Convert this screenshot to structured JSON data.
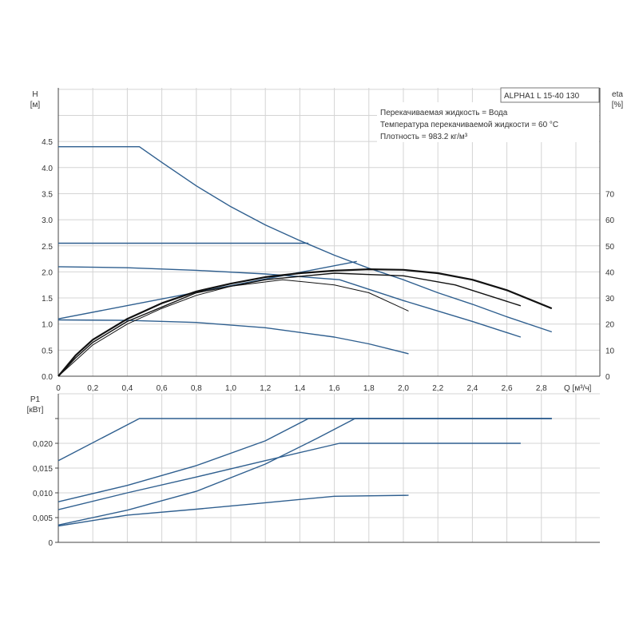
{
  "info": {
    "model": "ALPHA1 L 15-40  130",
    "lines": [
      "Перекачиваемая жидкость = Вода",
      "Температура перекачиваемой жидкости = 60 °C",
      "Плотность = 983.2 кг/м³"
    ]
  },
  "colors": {
    "pump_curve": "#2f5f8f",
    "eta_curve": "#111111",
    "grid": "#d4d4d4"
  },
  "chart_data": [
    {
      "type": "line",
      "title": "",
      "xlabel": "Q [м³/ч]",
      "ylabel": "H [м]",
      "ylabel_name": "H",
      "ylabel_unit": "[м]",
      "y2label_name": "eta",
      "y2label_unit": "[%]",
      "xlim": [
        0,
        3.14
      ],
      "ylim": [
        0,
        5.5
      ],
      "y2lim": [
        0,
        110
      ],
      "x_ticks": [
        "0",
        "0,2",
        "0,4",
        "0,6",
        "0,8",
        "1,0",
        "1,2",
        "1,4",
        "1,6",
        "1,8",
        "2,0",
        "2,2",
        "2,4",
        "2,6",
        "2,8"
      ],
      "y_ticks": [
        "0.0",
        "0.5",
        "1.0",
        "1.5",
        "2.0",
        "2.5",
        "3.0",
        "3.5",
        "4.0",
        "4.5"
      ],
      "y2_ticks": [
        "0",
        "10",
        "20",
        "30",
        "40",
        "50",
        "60",
        "70"
      ],
      "grid": true,
      "series": [
        {
          "name": "H max",
          "axis": "left",
          "x": [
            0,
            0.47,
            0.6,
            0.8,
            1.0,
            1.2,
            1.4,
            1.6,
            1.8,
            2.0,
            2.2,
            2.4,
            2.6,
            2.86
          ],
          "y": [
            4.4,
            4.4,
            4.1,
            3.65,
            3.25,
            2.9,
            2.6,
            2.32,
            2.07,
            1.85,
            1.6,
            1.38,
            1.14,
            0.85
          ]
        },
        {
          "name": "H constant",
          "axis": "left",
          "x": [
            0,
            1.45
          ],
          "y": [
            2.55,
            2.55
          ]
        },
        {
          "name": "H proportional high",
          "axis": "left",
          "x": [
            0,
            0.4,
            0.8,
            1.2,
            1.63,
            2.0,
            2.4,
            2.68
          ],
          "y": [
            2.1,
            2.08,
            2.03,
            1.96,
            1.85,
            1.45,
            1.05,
            0.75
          ]
        },
        {
          "name": "H rising",
          "axis": "left",
          "x": [
            0,
            1.73
          ],
          "y": [
            1.1,
            2.2
          ]
        },
        {
          "name": "H min",
          "axis": "left",
          "x": [
            0,
            0.4,
            0.8,
            1.2,
            1.6,
            1.8,
            2.03
          ],
          "y": [
            1.08,
            1.07,
            1.03,
            0.93,
            0.75,
            0.62,
            0.43
          ]
        },
        {
          "name": "eta max",
          "axis": "right",
          "x": [
            0,
            0.1,
            0.2,
            0.4,
            0.6,
            0.8,
            1.0,
            1.2,
            1.4,
            1.6,
            1.8,
            2.0,
            2.2,
            2.4,
            2.6,
            2.86
          ],
          "y": [
            0,
            8,
            14,
            22,
            28,
            32.5,
            35.5,
            38,
            39.5,
            40.5,
            41,
            40.8,
            39.5,
            37,
            33,
            26
          ]
        },
        {
          "name": "eta mid",
          "axis": "right",
          "x": [
            0,
            0.1,
            0.2,
            0.4,
            0.8,
            1.2,
            1.6,
            2.0,
            2.3,
            2.68
          ],
          "y": [
            0,
            7,
            13,
            21,
            32,
            37,
            39.5,
            38.5,
            35,
            27
          ]
        },
        {
          "name": "eta low",
          "axis": "right",
          "x": [
            0,
            0.1,
            0.2,
            0.4,
            0.6,
            0.8,
            1.0,
            1.3,
            1.6,
            1.8,
            2.03
          ],
          "y": [
            0,
            6,
            12,
            20,
            26,
            31,
            34.5,
            37,
            35,
            32,
            25
          ]
        }
      ]
    },
    {
      "type": "line",
      "xlabel": "Q [м³/ч]",
      "ylabel_name": "P1",
      "ylabel_unit": "[кВт]",
      "xlim": [
        0,
        3.14
      ],
      "ylim": [
        0,
        0.03
      ],
      "y_ticks": [
        "0",
        "0,005",
        "0,010",
        "0,015",
        "0,020",
        ""
      ],
      "grid": true,
      "series": [
        {
          "name": "P1 max",
          "x": [
            0,
            0.47,
            2.86
          ],
          "y": [
            0.0165,
            0.025,
            0.025
          ]
        },
        {
          "name": "P1 constant",
          "x": [
            0,
            0.4,
            0.8,
            1.2,
            1.45,
            2.86
          ],
          "y": [
            0.0082,
            0.0115,
            0.0155,
            0.0205,
            0.025,
            0.025
          ]
        },
        {
          "name": "P1 proportional",
          "x": [
            0,
            0.4,
            0.8,
            1.2,
            1.63,
            2.68
          ],
          "y": [
            0.0066,
            0.01,
            0.0132,
            0.0165,
            0.02,
            0.02
          ]
        },
        {
          "name": "P1 rising",
          "x": [
            0,
            0.4,
            0.8,
            1.2,
            1.5,
            1.72,
            2.86
          ],
          "y": [
            0.0035,
            0.0065,
            0.0103,
            0.0158,
            0.021,
            0.025,
            0.025
          ]
        },
        {
          "name": "P1 min",
          "x": [
            0,
            0.4,
            0.8,
            1.2,
            1.6,
            2.03
          ],
          "y": [
            0.0033,
            0.0055,
            0.0067,
            0.008,
            0.0093,
            0.0095
          ]
        }
      ]
    }
  ]
}
